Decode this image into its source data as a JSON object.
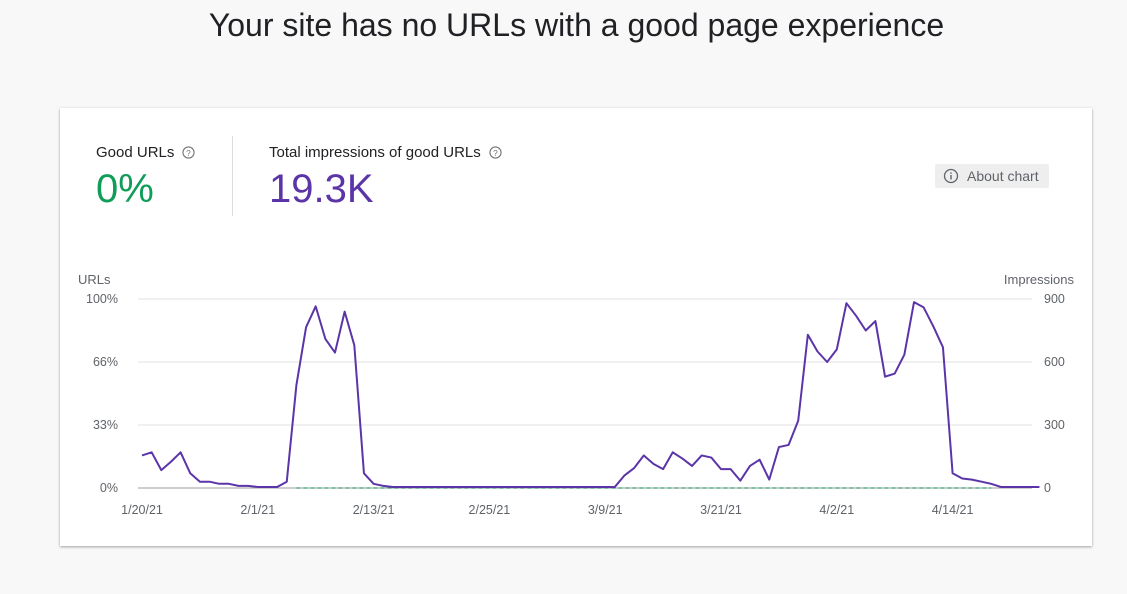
{
  "page": {
    "title": "Your site has no URLs with a good page experience"
  },
  "metrics": {
    "good_urls": {
      "label": "Good URLs",
      "value": "0%"
    },
    "impressions": {
      "label": "Total impressions of good URLs",
      "value": "19.3K"
    }
  },
  "about_button": {
    "label": "About chart",
    "icon": "info-icon"
  },
  "colors": {
    "good": "#0f9d58",
    "impressions": "#5b35a8",
    "grid": "#e0e0e0",
    "axis": "#9e9e9e"
  },
  "chart_data": {
    "type": "line",
    "title": "",
    "ylabel_left": "URLs",
    "ylabel_right": "Impressions",
    "x_ticks": [
      "1/20/21",
      "2/1/21",
      "2/13/21",
      "2/25/21",
      "3/9/21",
      "3/21/21",
      "4/2/21",
      "4/14/21"
    ],
    "y_left_ticks": [
      "0%",
      "33%",
      "66%",
      "100%"
    ],
    "y_right_ticks": [
      "0",
      "300",
      "600",
      "900"
    ],
    "ylim_left": [
      0,
      100
    ],
    "ylim_right": [
      0,
      900
    ],
    "grid": true,
    "legend": "none",
    "x_start": "1/20/21",
    "series": [
      {
        "axis": "left",
        "values": [
          0,
          0,
          0,
          0,
          0,
          0,
          0,
          0,
          0,
          0,
          0,
          0,
          0,
          0,
          0,
          0,
          0,
          0,
          0,
          0,
          0,
          0,
          0,
          0,
          0,
          0,
          0,
          0,
          0,
          0,
          0,
          0,
          0,
          0,
          0,
          0,
          0,
          0,
          0,
          0,
          0,
          0,
          0,
          0,
          0,
          0,
          0,
          0,
          0,
          0,
          0,
          0,
          0,
          0,
          0,
          0,
          0,
          0,
          0,
          0,
          0,
          0,
          0,
          0,
          0,
          0,
          0,
          0,
          0,
          0,
          0,
          0,
          0,
          0,
          0,
          0,
          0,
          0,
          0,
          0,
          0,
          0,
          0,
          0,
          0,
          0,
          0,
          0,
          0
        ]
      },
      {
        "axis": "right",
        "values": [
          155,
          170,
          85,
          125,
          170,
          70,
          30,
          30,
          20,
          20,
          10,
          10,
          5,
          5,
          5,
          30,
          490,
          765,
          865,
          710,
          645,
          840,
          680,
          70,
          20,
          10,
          5,
          5,
          5,
          5,
          5,
          5,
          5,
          5,
          5,
          5,
          5,
          5,
          5,
          5,
          5,
          5,
          5,
          5,
          5,
          5,
          5,
          5,
          5,
          5,
          60,
          95,
          155,
          115,
          90,
          170,
          140,
          105,
          155,
          145,
          90,
          90,
          35,
          105,
          135,
          40,
          195,
          205,
          320,
          730,
          650,
          600,
          660,
          880,
          820,
          750,
          795,
          530,
          545,
          635,
          885,
          860,
          770,
          670,
          70,
          45,
          40,
          30,
          20,
          5,
          5,
          5,
          5,
          5
        ]
      }
    ]
  }
}
